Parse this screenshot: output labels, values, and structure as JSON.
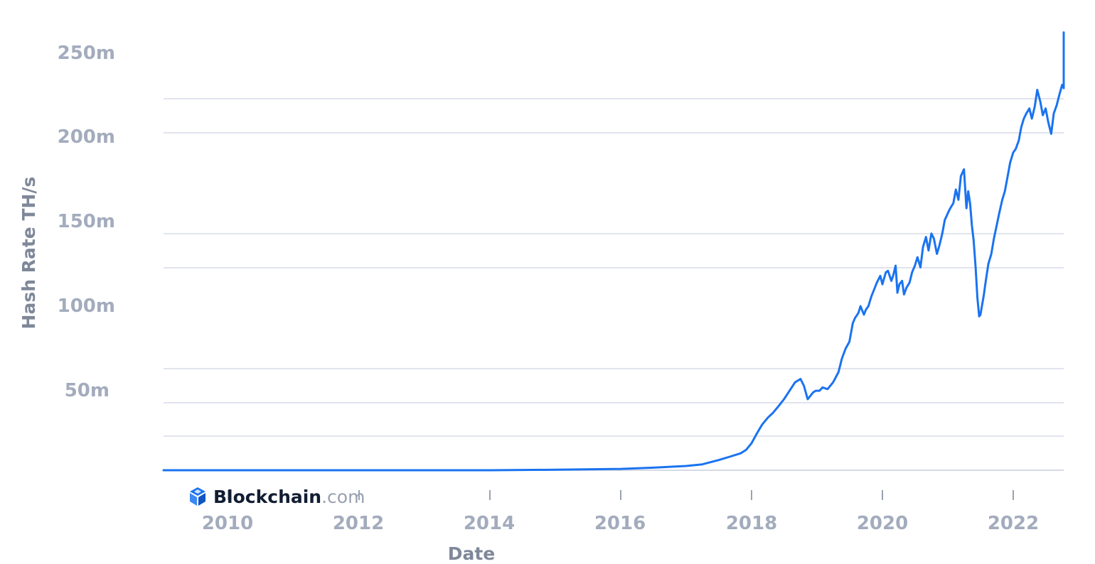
{
  "chart_data": {
    "type": "line",
    "title": "",
    "xlabel": "Date",
    "ylabel": "Hash Rate TH/s",
    "y_tick_labels": [
      "250m",
      "200m",
      "150m",
      "100m",
      "50m"
    ],
    "y_ticks": [
      250000000,
      200000000,
      150000000,
      100000000,
      50000000
    ],
    "x_tick_labels": [
      "2010",
      "2012",
      "2014",
      "2016",
      "2018",
      "2020",
      "2022"
    ],
    "x_ticks": [
      2010,
      2012,
      2014,
      2016,
      2018,
      2020,
      2022
    ],
    "xlim": [
      "2009-01-01",
      "2022-10-31"
    ],
    "ylim": [
      0,
      260000000
    ],
    "grid": true,
    "legend": "none",
    "colors": {
      "series": "#1a73f0",
      "grid": "#e1e4ee",
      "tick_text": "#a3acbd",
      "axis_title": "#7f8899"
    },
    "series": [
      {
        "x": [
          "2009-01-03",
          "2012-01-01",
          "2014-01-01",
          "2015-01-01",
          "2016-01-01",
          "2016-07-01",
          "2017-01-01",
          "2017-04-01",
          "2017-07-01",
          "2017-09-01",
          "2017-11-01",
          "2017-12-01",
          "2018-01-01",
          "2018-02-01",
          "2018-03-01",
          "2018-04-01",
          "2018-05-01",
          "2018-06-01",
          "2018-07-01",
          "2018-08-01",
          "2018-09-01",
          "2018-10-01",
          "2018-10-20",
          "2018-11-10",
          "2018-11-25",
          "2018-12-10",
          "2018-12-25",
          "2019-01-15",
          "2019-02-01",
          "2019-03-01",
          "2019-04-01",
          "2019-05-01",
          "2019-05-20",
          "2019-06-10",
          "2019-07-01",
          "2019-07-20",
          "2019-08-01",
          "2019-08-20",
          "2019-09-01",
          "2019-09-20",
          "2019-10-01",
          "2019-10-15",
          "2019-11-01",
          "2019-11-20",
          "2019-12-01",
          "2019-12-20",
          "2020-01-01",
          "2020-01-20",
          "2020-02-01",
          "2020-02-20",
          "2020-03-01",
          "2020-03-15",
          "2020-03-25",
          "2020-04-05",
          "2020-04-20",
          "2020-05-01",
          "2020-05-15",
          "2020-06-01",
          "2020-06-15",
          "2020-07-01",
          "2020-07-15",
          "2020-08-01",
          "2020-08-15",
          "2020-09-01",
          "2020-09-15",
          "2020-10-01",
          "2020-10-15",
          "2020-11-01",
          "2020-11-15",
          "2020-12-01",
          "2020-12-15",
          "2021-01-01",
          "2021-01-15",
          "2021-02-01",
          "2021-02-15",
          "2021-03-01",
          "2021-03-15",
          "2021-04-01",
          "2021-04-15",
          "2021-04-25",
          "2021-05-05",
          "2021-05-15",
          "2021-05-25",
          "2021-06-05",
          "2021-06-15",
          "2021-06-25",
          "2021-07-02",
          "2021-07-10",
          "2021-07-20",
          "2021-08-01",
          "2021-08-15",
          "2021-09-01",
          "2021-09-15",
          "2021-10-01",
          "2021-10-15",
          "2021-11-01",
          "2021-11-15",
          "2021-12-01",
          "2021-12-15",
          "2022-01-01",
          "2022-01-15",
          "2022-02-01",
          "2022-02-15",
          "2022-03-01",
          "2022-03-15",
          "2022-04-01",
          "2022-04-15",
          "2022-05-01",
          "2022-05-15",
          "2022-06-01",
          "2022-06-15",
          "2022-07-01",
          "2022-07-15",
          "2022-08-01",
          "2022-08-15",
          "2022-09-01",
          "2022-09-15",
          "2022-10-01",
          "2022-10-15",
          "2022-10-25"
        ],
        "y": [
          0,
          0,
          10000,
          300000,
          800000,
          1500000,
          2500000,
          3500000,
          6000000,
          8000000,
          10000000,
          12000000,
          16000000,
          22000000,
          27000000,
          31000000,
          34000000,
          38000000,
          42000000,
          47000000,
          52000000,
          54000000,
          50000000,
          42000000,
          44000000,
          46000000,
          47000000,
          47000000,
          49000000,
          48000000,
          52000000,
          58000000,
          66000000,
          72000000,
          76000000,
          87000000,
          90000000,
          93000000,
          97000000,
          92000000,
          95000000,
          97000000,
          103000000,
          108000000,
          111000000,
          115000000,
          110000000,
          117000000,
          118000000,
          112000000,
          115000000,
          121000000,
          105000000,
          110000000,
          112000000,
          104000000,
          108000000,
          111000000,
          117000000,
          121000000,
          126000000,
          120000000,
          132000000,
          138000000,
          130000000,
          140000000,
          137000000,
          128000000,
          133000000,
          140000000,
          148000000,
          152000000,
          155000000,
          158000000,
          166000000,
          160000000,
          174000000,
          178000000,
          155000000,
          165000000,
          158000000,
          145000000,
          136000000,
          120000000,
          102000000,
          91000000,
          92000000,
          97000000,
          103000000,
          112000000,
          122000000,
          128000000,
          137000000,
          145000000,
          152000000,
          160000000,
          165000000,
          174000000,
          182000000,
          188000000,
          190000000,
          195000000,
          203000000,
          208000000,
          211000000,
          214000000,
          208000000,
          215000000,
          225000000,
          218000000,
          210000000,
          214000000,
          206000000,
          199000000,
          211000000,
          216000000,
          222000000,
          228000000,
          226000000,
          259000000
        ]
      }
    ]
  },
  "brand": {
    "name_bold": "Blockchain",
    "name_light": ".com",
    "logo_icon": "blockchain-cube-icon",
    "color": "#1a73f0"
  }
}
